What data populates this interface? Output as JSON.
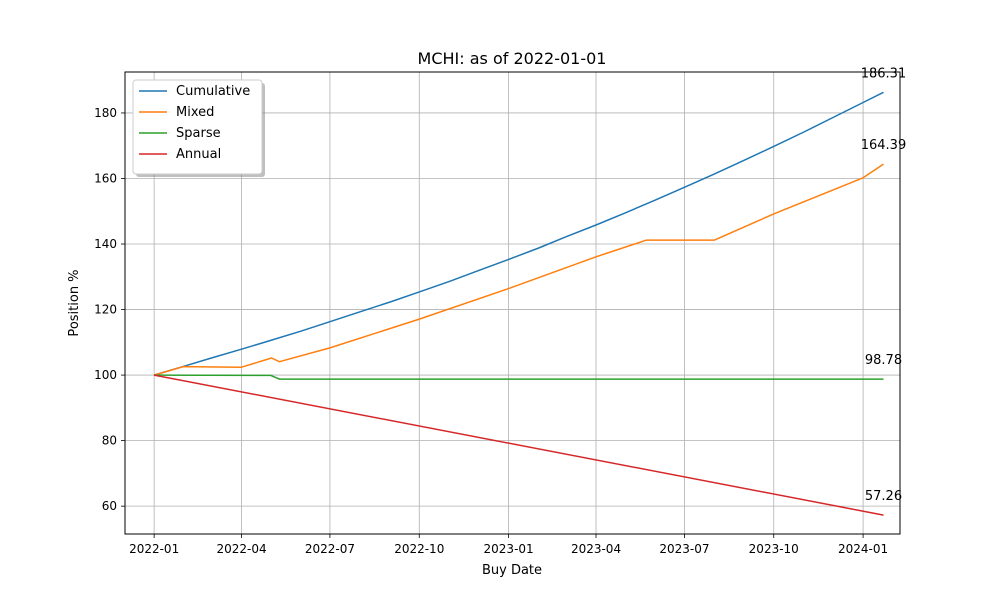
{
  "chart_data": {
    "type": "line",
    "title": "MCHI: as of 2022-01-01",
    "xlabel": "Buy Date",
    "ylabel": "Position %",
    "xlim": [
      "2021-12-02",
      "2024-02-08"
    ],
    "ylim": [
      51.5,
      192.5
    ],
    "xticks": [
      {
        "label": "2022-01",
        "date": "2022-01-01"
      },
      {
        "label": "2022-04",
        "date": "2022-04-01"
      },
      {
        "label": "2022-07",
        "date": "2022-07-01"
      },
      {
        "label": "2022-10",
        "date": "2022-10-01"
      },
      {
        "label": "2023-01",
        "date": "2023-01-01"
      },
      {
        "label": "2023-04",
        "date": "2023-04-01"
      },
      {
        "label": "2023-07",
        "date": "2023-07-01"
      },
      {
        "label": "2023-10",
        "date": "2023-10-01"
      },
      {
        "label": "2024-01",
        "date": "2024-01-01"
      }
    ],
    "yticks": [
      60,
      80,
      100,
      120,
      140,
      160,
      180
    ],
    "grid": true,
    "legend_position": "top-left",
    "series": [
      {
        "name": "Cumulative",
        "color": "#1f77b4",
        "points": [
          [
            "2022-01-01",
            100
          ],
          [
            "2022-02-01",
            102.7
          ],
          [
            "2022-03-01",
            105.2
          ],
          [
            "2022-04-01",
            107.9
          ],
          [
            "2022-05-01",
            110.6
          ],
          [
            "2022-06-01",
            113.4
          ],
          [
            "2022-07-01",
            116.3
          ],
          [
            "2022-08-01",
            119.3
          ],
          [
            "2022-09-01",
            122.3
          ],
          [
            "2022-10-01",
            125.4
          ],
          [
            "2022-11-01",
            128.6
          ],
          [
            "2022-12-01",
            131.9
          ],
          [
            "2023-01-01",
            135.3
          ],
          [
            "2023-02-01",
            138.8
          ],
          [
            "2023-03-01",
            142.2
          ],
          [
            "2023-04-01",
            145.8
          ],
          [
            "2023-05-01",
            149.5
          ],
          [
            "2023-06-01",
            153.4
          ],
          [
            "2023-07-01",
            157.3
          ],
          [
            "2023-08-01",
            161.4
          ],
          [
            "2023-09-01",
            165.6
          ],
          [
            "2023-10-01",
            169.8
          ],
          [
            "2023-11-01",
            174.2
          ],
          [
            "2023-12-01",
            178.6
          ],
          [
            "2024-01-01",
            183.2
          ],
          [
            "2024-01-22",
            186.31
          ]
        ]
      },
      {
        "name": "Mixed",
        "color": "#ff7f0e",
        "points": [
          [
            "2022-01-01",
            100
          ],
          [
            "2022-01-31",
            102.6
          ],
          [
            "2022-04-01",
            102.4
          ],
          [
            "2022-05-02",
            105.2
          ],
          [
            "2022-05-10",
            104.1
          ],
          [
            "2022-07-01",
            108.3
          ],
          [
            "2022-10-01",
            117.1
          ],
          [
            "2023-01-01",
            126.4
          ],
          [
            "2023-04-01",
            136.1
          ],
          [
            "2023-05-23",
            141.2
          ],
          [
            "2023-08-01",
            141.2
          ],
          [
            "2023-10-01",
            149.2
          ],
          [
            "2024-01-01",
            160.2
          ],
          [
            "2024-01-22",
            164.39
          ]
        ]
      },
      {
        "name": "Sparse",
        "color": "#2ca02c",
        "points": [
          [
            "2022-01-01",
            100
          ],
          [
            "2022-05-01",
            99.9
          ],
          [
            "2022-05-10",
            98.78
          ],
          [
            "2024-01-22",
            98.78
          ]
        ]
      },
      {
        "name": "Annual",
        "color": "#d62728",
        "points": [
          [
            "2022-01-01",
            100
          ],
          [
            "2024-01-22",
            57.26
          ]
        ]
      }
    ],
    "annotations": [
      {
        "text": "186.31",
        "date": "2024-01-22",
        "value": 186.31
      },
      {
        "text": "164.39",
        "date": "2024-01-22",
        "value": 164.39
      },
      {
        "text": "98.78",
        "date": "2024-01-22",
        "value": 98.78
      },
      {
        "text": "57.26",
        "date": "2024-01-22",
        "value": 57.26
      }
    ]
  }
}
